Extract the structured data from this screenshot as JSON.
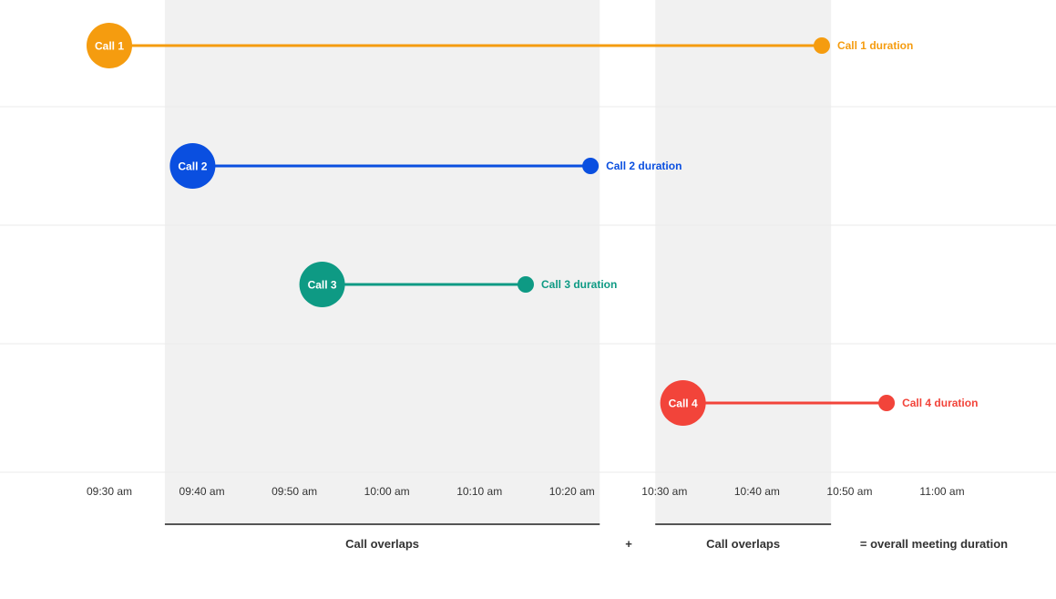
{
  "chart_data": {
    "type": "timeline",
    "x_axis": {
      "ticks": [
        "09:30 am",
        "09:40 am",
        "09:50 am",
        "10:00 am",
        "10:10 am",
        "10:20 am",
        "10:30 am",
        "10:40 am",
        "10:50 am",
        "11:00 am"
      ],
      "range": [
        "09:30",
        "11:00"
      ]
    },
    "grid": true,
    "series": [
      {
        "name": "Call 1",
        "start": "09:30",
        "end": "10:47",
        "end_label": "Call 1 duration",
        "color": "#F59C0F"
      },
      {
        "name": "Call 2",
        "start": "09:39",
        "end": "10:22",
        "end_label": "Call 2 duration",
        "color": "#0A4FE0"
      },
      {
        "name": "Call 3",
        "start": "09:53",
        "end": "10:15",
        "end_label": "Call 3 duration",
        "color": "#0E9A84"
      },
      {
        "name": "Call 4",
        "start": "10:32",
        "end": "10:54",
        "end_label": "Call 4 duration",
        "color": "#F2443A"
      }
    ],
    "overlap_regions": [
      {
        "start": "09:36",
        "end": "10:23",
        "label": "Call overlaps"
      },
      {
        "start": "10:29",
        "end": "10:48",
        "label": "Call overlaps"
      }
    ],
    "annotations": {
      "plus": "+",
      "total": "= overall meeting duration"
    },
    "colors": {
      "shade": "#F1F1F1",
      "grid": "#EBEBEB",
      "text": "#333333"
    }
  }
}
